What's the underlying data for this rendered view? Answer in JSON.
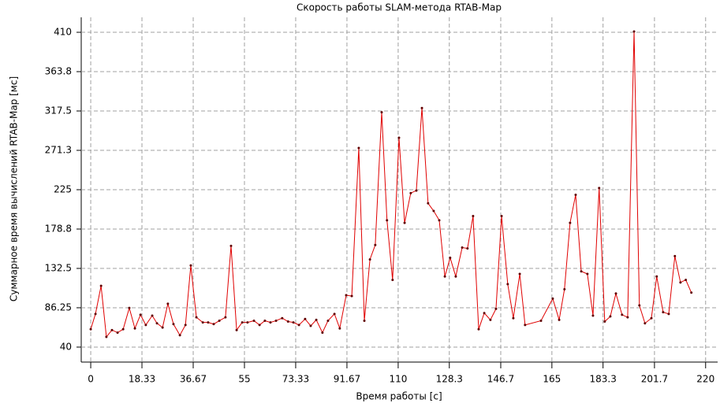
{
  "chart_data": {
    "type": "line",
    "title": "Скорость работы SLAM-метода RTAB-Map",
    "xlabel": "Время работы [с]",
    "ylabel": "Суммарное время вычислений RTAB-Map [мс]",
    "x": [
      0,
      1.7,
      3.7,
      5.6,
      7.6,
      9.6,
      11.6,
      13.8,
      15.8,
      17.8,
      19.7,
      22,
      23.7,
      25.7,
      27.6,
      29.6,
      31.9,
      33.9,
      35.8,
      37.8,
      40.1,
      42,
      44,
      46,
      48.2,
      50.2,
      52.2,
      54.2,
      56.1,
      58.4,
      60.4,
      62.3,
      64.3,
      66.3,
      68.5,
      70.6,
      72.5,
      74.5,
      76.7,
      78.7,
      80.7,
      82.9,
      84.9,
      87.2,
      89.1,
      91.4,
      93.4,
      95.9,
      97.9,
      99.9,
      101.8,
      104.1,
      106,
      108,
      110.3,
      112.3,
      114.5,
      116.5,
      118.5,
      120.7,
      122.7,
      124.7,
      126.7,
      128.6,
      130.6,
      132.9,
      134.8,
      136.8,
      138.8,
      140.8,
      143,
      145,
      147,
      149.2,
      151.2,
      153.5,
      155.4,
      161.1,
      165.3,
      167.6,
      169.5,
      171.5,
      173.5,
      175.5,
      177.7,
      179.7,
      181.9,
      183.9,
      185.9,
      187.9,
      190.1,
      192.1,
      194.4,
      196.3,
      198.3,
      200.6,
      202.5,
      204.8,
      206.8,
      209,
      211,
      212.9,
      214.9
    ],
    "series": [
      {
        "name": "RTAB-Map",
        "color": "#e00000",
        "marker_color": "#600000",
        "values": [
          61,
          79,
          112,
          52,
          60,
          57,
          61,
          86,
          62,
          78,
          66,
          77,
          68,
          63,
          91,
          67,
          54,
          66,
          136,
          75,
          69,
          69,
          67,
          71,
          75,
          159,
          60,
          69,
          69,
          71,
          66,
          71,
          69,
          71,
          74,
          70,
          69,
          66,
          73,
          65,
          72,
          57,
          71,
          79,
          62,
          101,
          100,
          274,
          71,
          143,
          160,
          316,
          189,
          119,
          286,
          186,
          221,
          224,
          321,
          209,
          200,
          189,
          123,
          145,
          123,
          157,
          156,
          194,
          61,
          80,
          72,
          85,
          194,
          114,
          74,
          126,
          66,
          71,
          97,
          72,
          108,
          186,
          219,
          129,
          126,
          77,
          227,
          70,
          76,
          103,
          78,
          75,
          411,
          89,
          68,
          74,
          123,
          81,
          79,
          147,
          116,
          119,
          104
        ]
      }
    ],
    "xlim": [
      -3.4,
      224.3
    ],
    "ylim": [
      22.4,
      427.6
    ],
    "xticks": [
      0,
      18.33,
      36.67,
      55,
      73.33,
      91.67,
      110,
      128.3,
      146.7,
      165,
      183.3,
      201.7,
      220
    ],
    "yticks": [
      40,
      86.25,
      132.5,
      {
        "value": 178.75,
        "label": "178.8"
      },
      225,
      {
        "value": 271.25,
        "label": "271.3"
      },
      317.5,
      {
        "value": 363.75,
        "label": "363.8"
      },
      410
    ],
    "grid": true
  }
}
